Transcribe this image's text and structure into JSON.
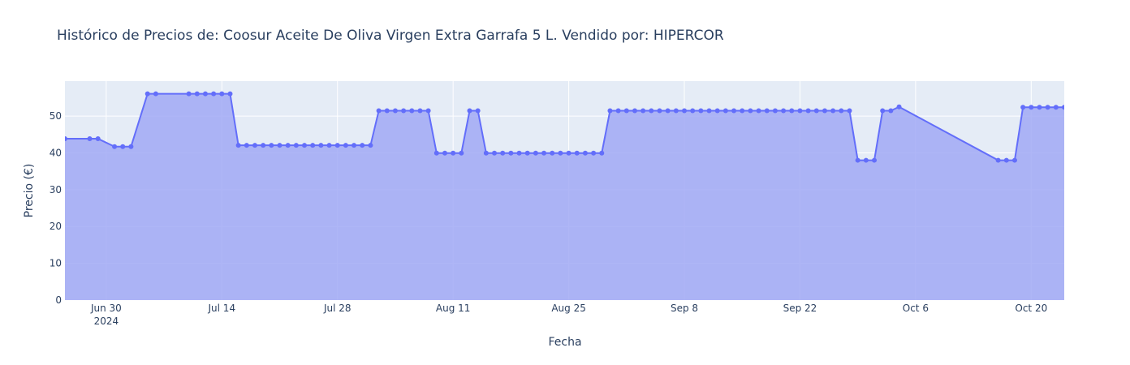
{
  "chart_data": {
    "type": "area",
    "title": "Histórico de Precios de: Coosur Aceite De Oliva Virgen Extra Garrafa 5 L. Vendido por: HIPERCOR",
    "xlabel": "Fecha",
    "ylabel": "Precio (€)",
    "xlim": [
      "2024-06-25",
      "2024-10-24"
    ],
    "ylim": [
      0,
      59.5
    ],
    "grid": true,
    "x_ticks": [
      {
        "date": "2024-06-30",
        "label": "Jun 30",
        "sublabel": "2024"
      },
      {
        "date": "2024-07-14",
        "label": "Jul 14"
      },
      {
        "date": "2024-07-28",
        "label": "Jul 28"
      },
      {
        "date": "2024-08-11",
        "label": "Aug 11"
      },
      {
        "date": "2024-08-25",
        "label": "Aug 25"
      },
      {
        "date": "2024-09-08",
        "label": "Sep 8"
      },
      {
        "date": "2024-09-22",
        "label": "Sep 22"
      },
      {
        "date": "2024-10-06",
        "label": "Oct 6"
      },
      {
        "date": "2024-10-20",
        "label": "Oct 20"
      }
    ],
    "y_ticks": [
      0,
      10,
      20,
      30,
      40,
      50
    ],
    "series": [
      {
        "line_color": "#636efa",
        "fill_color": "#a1a9f5",
        "points": [
          [
            "2024-06-25",
            43.85
          ],
          [
            "2024-06-28",
            43.85
          ],
          [
            "2024-06-29",
            43.85
          ],
          [
            "2024-07-01",
            41.7
          ],
          [
            "2024-07-02",
            41.7
          ],
          [
            "2024-07-03",
            41.7
          ],
          [
            "2024-07-05",
            56.05
          ],
          [
            "2024-07-06",
            56.05
          ],
          [
            "2024-07-10",
            56.05
          ],
          [
            "2024-07-11",
            56.05
          ],
          [
            "2024-07-12",
            56.05
          ],
          [
            "2024-07-13",
            56.05
          ],
          [
            "2024-07-14",
            56.05
          ],
          [
            "2024-07-15",
            56.05
          ],
          [
            "2024-07-16",
            42.05
          ],
          [
            "2024-07-17",
            42.05
          ],
          [
            "2024-07-18",
            42.05
          ],
          [
            "2024-07-19",
            42.05
          ],
          [
            "2024-07-20",
            42.05
          ],
          [
            "2024-07-21",
            42.05
          ],
          [
            "2024-07-22",
            42.05
          ],
          [
            "2024-07-23",
            42.05
          ],
          [
            "2024-07-24",
            42.05
          ],
          [
            "2024-07-25",
            42.05
          ],
          [
            "2024-07-26",
            42.05
          ],
          [
            "2024-07-27",
            42.05
          ],
          [
            "2024-07-28",
            42.05
          ],
          [
            "2024-07-29",
            42.05
          ],
          [
            "2024-07-30",
            42.05
          ],
          [
            "2024-07-31",
            42.05
          ],
          [
            "2024-08-01",
            42.05
          ],
          [
            "2024-08-02",
            51.45
          ],
          [
            "2024-08-03",
            51.45
          ],
          [
            "2024-08-04",
            51.45
          ],
          [
            "2024-08-05",
            51.45
          ],
          [
            "2024-08-06",
            51.45
          ],
          [
            "2024-08-07",
            51.45
          ],
          [
            "2024-08-08",
            51.45
          ],
          [
            "2024-08-09",
            39.95
          ],
          [
            "2024-08-10",
            39.95
          ],
          [
            "2024-08-11",
            39.95
          ],
          [
            "2024-08-12",
            39.95
          ],
          [
            "2024-08-13",
            51.45
          ],
          [
            "2024-08-14",
            51.45
          ],
          [
            "2024-08-15",
            39.95
          ],
          [
            "2024-08-16",
            39.95
          ],
          [
            "2024-08-17",
            39.95
          ],
          [
            "2024-08-18",
            39.95
          ],
          [
            "2024-08-19",
            39.95
          ],
          [
            "2024-08-20",
            39.95
          ],
          [
            "2024-08-21",
            39.95
          ],
          [
            "2024-08-22",
            39.95
          ],
          [
            "2024-08-23",
            39.95
          ],
          [
            "2024-08-24",
            39.95
          ],
          [
            "2024-08-25",
            39.95
          ],
          [
            "2024-08-26",
            39.95
          ],
          [
            "2024-08-27",
            39.95
          ],
          [
            "2024-08-28",
            39.95
          ],
          [
            "2024-08-29",
            39.95
          ],
          [
            "2024-08-30",
            51.45
          ],
          [
            "2024-08-31",
            51.45
          ],
          [
            "2024-09-01",
            51.45
          ],
          [
            "2024-09-02",
            51.45
          ],
          [
            "2024-09-03",
            51.45
          ],
          [
            "2024-09-04",
            51.45
          ],
          [
            "2024-09-05",
            51.45
          ],
          [
            "2024-09-06",
            51.45
          ],
          [
            "2024-09-07",
            51.45
          ],
          [
            "2024-09-08",
            51.45
          ],
          [
            "2024-09-09",
            51.45
          ],
          [
            "2024-09-10",
            51.45
          ],
          [
            "2024-09-11",
            51.45
          ],
          [
            "2024-09-12",
            51.45
          ],
          [
            "2024-09-13",
            51.45
          ],
          [
            "2024-09-14",
            51.45
          ],
          [
            "2024-09-15",
            51.45
          ],
          [
            "2024-09-16",
            51.45
          ],
          [
            "2024-09-17",
            51.45
          ],
          [
            "2024-09-18",
            51.45
          ],
          [
            "2024-09-19",
            51.45
          ],
          [
            "2024-09-20",
            51.45
          ],
          [
            "2024-09-21",
            51.45
          ],
          [
            "2024-09-22",
            51.45
          ],
          [
            "2024-09-23",
            51.45
          ],
          [
            "2024-09-24",
            51.45
          ],
          [
            "2024-09-25",
            51.45
          ],
          [
            "2024-09-26",
            51.45
          ],
          [
            "2024-09-27",
            51.45
          ],
          [
            "2024-09-28",
            51.45
          ],
          [
            "2024-09-29",
            38.0
          ],
          [
            "2024-09-30",
            38.0
          ],
          [
            "2024-10-01",
            38.0
          ],
          [
            "2024-10-02",
            51.45
          ],
          [
            "2024-10-03",
            51.45
          ],
          [
            "2024-10-04",
            52.5
          ],
          [
            "2024-10-16",
            38.0
          ],
          [
            "2024-10-17",
            38.0
          ],
          [
            "2024-10-18",
            38.0
          ],
          [
            "2024-10-19",
            52.4
          ],
          [
            "2024-10-20",
            52.4
          ],
          [
            "2024-10-21",
            52.4
          ],
          [
            "2024-10-22",
            52.4
          ],
          [
            "2024-10-23",
            52.4
          ],
          [
            "2024-10-24",
            52.4
          ],
          [
            "2024-10-25",
            52.4
          ],
          [
            "2024-10-26",
            52.4
          ],
          [
            "2024-10-27",
            52.4
          ],
          [
            "2024-10-28",
            52.4
          ]
        ]
      }
    ]
  }
}
